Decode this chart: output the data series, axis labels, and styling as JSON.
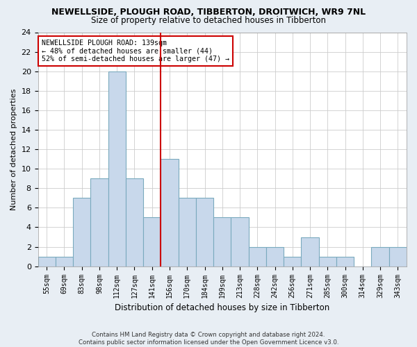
{
  "title1": "NEWELLSIDE, PLOUGH ROAD, TIBBERTON, DROITWICH, WR9 7NL",
  "title2": "Size of property relative to detached houses in Tibberton",
  "xlabel": "Distribution of detached houses by size in Tibberton",
  "ylabel": "Number of detached properties",
  "categories": [
    "55sqm",
    "69sqm",
    "83sqm",
    "98sqm",
    "112sqm",
    "127sqm",
    "141sqm",
    "156sqm",
    "170sqm",
    "184sqm",
    "199sqm",
    "213sqm",
    "228sqm",
    "242sqm",
    "256sqm",
    "271sqm",
    "285sqm",
    "300sqm",
    "314sqm",
    "329sqm",
    "343sqm"
  ],
  "values": [
    1,
    1,
    7,
    9,
    20,
    9,
    5,
    11,
    7,
    7,
    5,
    5,
    2,
    2,
    1,
    3,
    1,
    1,
    0,
    2,
    2
  ],
  "bar_color": "#c8d8eb",
  "bar_edge_color": "#7aaabe",
  "vline_x_index": 6,
  "vline_color": "#cc0000",
  "annotation_line1": "NEWELLSIDE PLOUGH ROAD: 139sqm",
  "annotation_line2": "← 48% of detached houses are smaller (44)",
  "annotation_line3": "52% of semi-detached houses are larger (47) →",
  "ylim": [
    0,
    24
  ],
  "yticks": [
    0,
    2,
    4,
    6,
    8,
    10,
    12,
    14,
    16,
    18,
    20,
    22,
    24
  ],
  "footer1": "Contains HM Land Registry data © Crown copyright and database right 2024.",
  "footer2": "Contains public sector information licensed under the Open Government Licence v3.0.",
  "fig_bg_color": "#e8eef4",
  "plot_bg_color": "#ffffff"
}
